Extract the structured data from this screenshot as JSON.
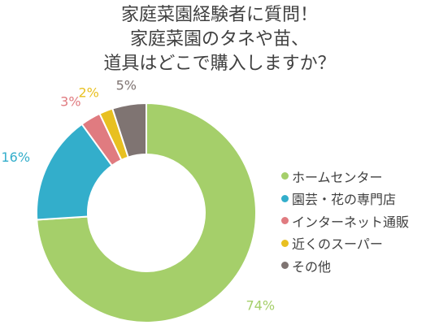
{
  "title": {
    "lines": [
      "家庭菜園経験者に質問！",
      "家庭菜園のタネや苗、",
      "道具はどこで購入しますか？"
    ]
  },
  "chart_data": {
    "type": "pie",
    "style": "donut",
    "title": "家庭菜園経験者に質問！家庭菜園のタネや苗、道具はどこで購入しますか？",
    "unit": "%",
    "legend_position": "right",
    "categories": [
      "ホームセンター",
      "園芸・花の専門店",
      "インターネット通販",
      "近くのスーパー",
      "その他"
    ],
    "values": [
      74,
      16,
      3,
      2,
      5
    ],
    "labels": [
      "74%",
      "16%",
      "3%",
      "2%",
      "5%"
    ],
    "colors": [
      "#a5cf6a",
      "#33aecb",
      "#e07b80",
      "#e8c021",
      "#7f7472"
    ]
  }
}
